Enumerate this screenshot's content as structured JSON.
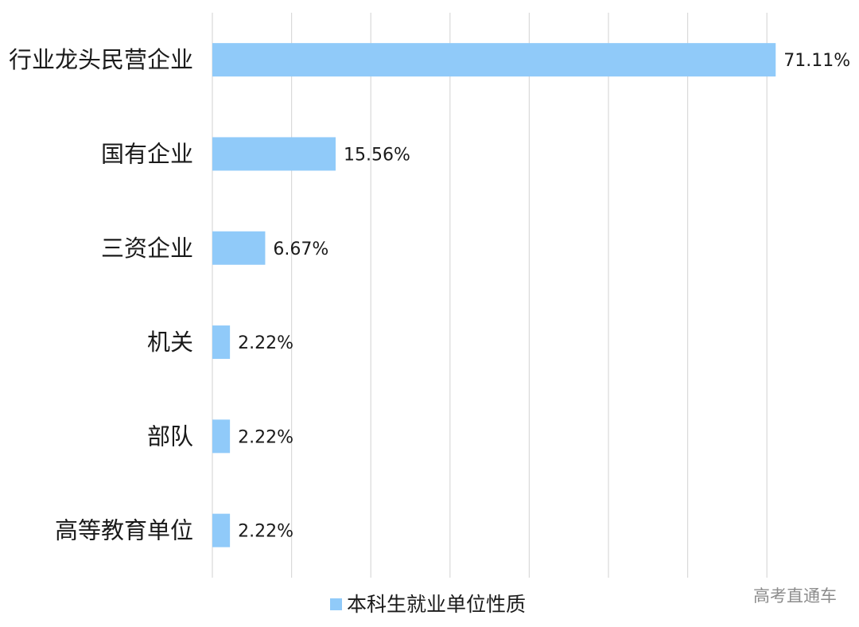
{
  "chart_data": {
    "type": "bar",
    "orientation": "horizontal",
    "categories": [
      "行业龙头民营企业",
      "国有企业",
      "三资企业",
      "机关",
      "部队",
      "高等教育单位"
    ],
    "values": [
      71.11,
      15.56,
      6.67,
      2.22,
      2.22,
      2.22
    ],
    "value_labels": [
      "71.11%",
      "15.56%",
      "6.67%",
      "2.22%",
      "2.22%",
      "2.22%"
    ],
    "series": [
      {
        "name": "本科生就业单位性质",
        "values": [
          71.11,
          15.56,
          6.67,
          2.22,
          2.22,
          2.22
        ]
      }
    ],
    "xlim": [
      0,
      70
    ],
    "grid": true,
    "legend_position": "bottom",
    "colors": {
      "bar": "#90CAF9",
      "grid": "#D9D9D9",
      "text": "#1A1A1A"
    }
  },
  "watermark": "高考直通车"
}
